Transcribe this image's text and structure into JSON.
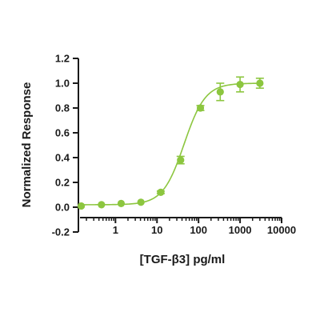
{
  "chart_data": {
    "type": "scatter",
    "xlabel": "[TGF-β3] pg/ml",
    "ylabel": "Normalized Response",
    "x_scale": "log",
    "xlim": [
      0.14,
      10000
    ],
    "ylim": [
      -0.2,
      1.2
    ],
    "x_ticks": [
      1,
      10,
      100,
      1000,
      10000
    ],
    "x_tick_labels": [
      "1",
      "10",
      "100",
      "1000",
      "10000"
    ],
    "y_ticks": [
      -0.2,
      0.0,
      0.2,
      0.4,
      0.6,
      0.8,
      1.0,
      1.2
    ],
    "y_tick_labels": [
      "-0.2",
      "0.0",
      "0.2",
      "0.4",
      "0.6",
      "0.8",
      "1.0",
      "1.2"
    ],
    "grid": false,
    "series": [
      {
        "color": "#8cc63f",
        "x": [
          0.15,
          0.46,
          1.37,
          4.1,
          12.3,
          37,
          111,
          333,
          1000,
          3000
        ],
        "y": [
          0.01,
          0.02,
          0.03,
          0.04,
          0.12,
          0.38,
          0.8,
          0.93,
          0.99,
          1.0
        ],
        "error": [
          0.0,
          0.0,
          0.0,
          0.0,
          0.01,
          0.03,
          0.02,
          0.07,
          0.06,
          0.04
        ],
        "fit": {
          "model": "4PL",
          "bottom": 0.02,
          "top": 1.0,
          "ec50": 45,
          "hill": 1.7
        }
      }
    ]
  }
}
